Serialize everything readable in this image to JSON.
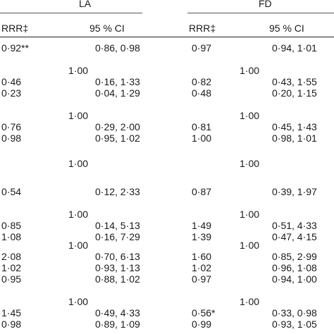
{
  "groups": [
    {
      "label": "LA",
      "columns": {
        "rrr": "RRR‡",
        "ci": "95 % CI"
      }
    },
    {
      "label": "FD",
      "columns": {
        "rrr": "RRR‡",
        "ci": "95 % CI"
      }
    }
  ],
  "rows": [
    {
      "kind": "data",
      "la": {
        "rrr": "0·92**",
        "ci": "0·86, 0·98"
      },
      "fd": {
        "rrr": "0·97",
        "ci": "0·94, 1·01"
      }
    },
    {
      "kind": "ref",
      "la": "1·00",
      "fd": "1·00"
    },
    {
      "kind": "data",
      "la": {
        "rrr": "0·46",
        "ci": "0·16, 1·33"
      },
      "fd": {
        "rrr": "0·82",
        "ci": "0·43, 1·55"
      }
    },
    {
      "kind": "data",
      "la": {
        "rrr": "0·23",
        "ci": "0·04, 1·29"
      },
      "fd": {
        "rrr": "0·48",
        "ci": "0·20, 1·15"
      }
    },
    {
      "kind": "ref",
      "la": "1·00",
      "fd": "1·00"
    },
    {
      "kind": "data",
      "la": {
        "rrr": "0·76",
        "ci": "0·29, 2·00"
      },
      "fd": {
        "rrr": "0·81",
        "ci": "0·45, 1·43"
      }
    },
    {
      "kind": "data",
      "la": {
        "rrr": "0·98",
        "ci": "0·95, 1·02"
      },
      "fd": {
        "rrr": "1·00",
        "ci": "0·98, 1·01"
      }
    },
    {
      "kind": "ref",
      "la": "1·00",
      "fd": "1·00"
    },
    {
      "kind": "data",
      "la": {
        "rrr": "0·54",
        "ci": "0·12, 2·33"
      },
      "fd": {
        "rrr": "0·87",
        "ci": "0·39, 1·97"
      }
    },
    {
      "kind": "ref",
      "la": "1·00",
      "fd": "1·00"
    },
    {
      "kind": "data",
      "la": {
        "rrr": "0·85",
        "ci": "0·14, 5·13"
      },
      "fd": {
        "rrr": "1·49",
        "ci": "0·51, 4·33"
      }
    },
    {
      "kind": "data",
      "la": {
        "rrr": "1·08",
        "ci": "0·16, 7·29"
      },
      "fd": {
        "rrr": "1·39",
        "ci": "0·47, 4·15"
      }
    },
    {
      "kind": "ref",
      "la": "1·00",
      "fd": "1·00"
    },
    {
      "kind": "data",
      "la": {
        "rrr": "2·08",
        "ci": "0·70, 6·13"
      },
      "fd": {
        "rrr": "1·60",
        "ci": "0·85, 2·99"
      }
    },
    {
      "kind": "data",
      "la": {
        "rrr": "1·02",
        "ci": "0·93, 1·13"
      },
      "fd": {
        "rrr": "1·02",
        "ci": "0·96, 1·08"
      }
    },
    {
      "kind": "data",
      "la": {
        "rrr": "0·95",
        "ci": "0·88, 1·02"
      },
      "fd": {
        "rrr": "0·97",
        "ci": "0·94, 1·00"
      }
    },
    {
      "kind": "ref",
      "la": "1·00",
      "fd": "1·00"
    },
    {
      "kind": "data",
      "la": {
        "rrr": "1·45",
        "ci": "0·49, 4·33"
      },
      "fd": {
        "rrr": "0·56*",
        "ci": "0·33, 0·98"
      }
    },
    {
      "kind": "data",
      "la": {
        "rrr": "0·98",
        "ci": "0·89, 1·09"
      },
      "fd": {
        "rrr": "0·99",
        "ci": "0·93, 1·05"
      }
    }
  ]
}
